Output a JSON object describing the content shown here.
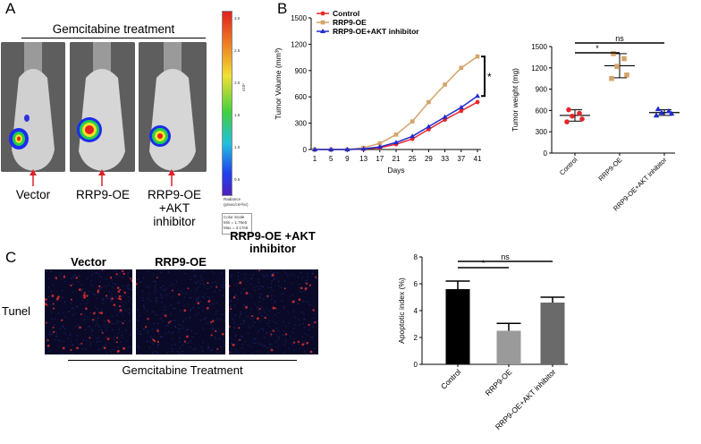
{
  "panelA": {
    "letter": "A",
    "treatment_label": "Gemcitabine treatment",
    "mice": [
      {
        "label": "Vector"
      },
      {
        "label": "RRP9-OE"
      },
      {
        "label": "RRP9-OE +AKT inhibitor"
      }
    ],
    "colorbar": {
      "ticks": [
        "3.0",
        "2.5",
        "2.0",
        "1.5",
        "1.0",
        "0.5"
      ],
      "unit": "x10⁶",
      "title_line1": "Radiance",
      "title_line2": "(p/sec/cm²/sr)",
      "scale_title": "Color Scale",
      "scale_min": "Min = 1.76e5",
      "scale_max": "Max = 3.17e6"
    }
  },
  "panelB": {
    "letter": "B"
  },
  "panelC": {
    "letter": "C",
    "row_label": "Tunel",
    "columns": [
      "Vector",
      "RRP9-OE",
      "RRP9-OE +AKT inhibitor"
    ],
    "treatment_label": "Gemcitabine Treatment"
  },
  "chart_data": [
    {
      "type": "line",
      "xlabel": "Days",
      "ylabel": "Tumor Volume (mm³)",
      "x": [
        1,
        5,
        9,
        13,
        17,
        21,
        25,
        29,
        33,
        37,
        41
      ],
      "ylim": [
        0,
        1500
      ],
      "yticks": [
        0,
        300,
        600,
        900,
        1200,
        1500
      ],
      "series": [
        {
          "name": "Control",
          "color": "#e8262a",
          "marker": "circle",
          "values": [
            0,
            0,
            0,
            5,
            20,
            60,
            120,
            230,
            340,
            440,
            540
          ]
        },
        {
          "name": "RRP9-OE",
          "color": "#d4a46a",
          "marker": "square",
          "values": [
            0,
            0,
            0,
            20,
            70,
            170,
            320,
            540,
            740,
            930,
            1060
          ]
        },
        {
          "name": "RRP9-OE+AKT inhibitor",
          "color": "#1f2bcc",
          "marker": "triangle",
          "values": [
            0,
            0,
            0,
            8,
            30,
            80,
            150,
            260,
            370,
            480,
            610
          ]
        }
      ],
      "annotation": "*",
      "legend": "top-left"
    },
    {
      "type": "scatter",
      "ylabel": "Tumor weight (mg)",
      "categories": [
        "Control",
        "RRP9-OE",
        "RRP9-OE+AKT inhibitor"
      ],
      "ylim": [
        0,
        1500
      ],
      "yticks": [
        0,
        300,
        600,
        900,
        1200,
        1500
      ],
      "means": [
        530,
        1230,
        570
      ],
      "errors": [
        80,
        170,
        40
      ],
      "points": [
        [
          610,
          560,
          520,
          480,
          440
        ],
        [
          1400,
          1330,
          1220,
          1100,
          1050
        ],
        [
          620,
          590,
          570,
          555,
          530
        ]
      ],
      "colors": [
        "#e8262a",
        "#d4a46a",
        "#1f2bcc"
      ],
      "comparisons": [
        {
          "label": "*",
          "from": 0,
          "to": 1
        },
        {
          "label": "ns",
          "from": 0,
          "to": 2
        }
      ]
    },
    {
      "type": "bar",
      "ylabel": "Apoptotic index (%)",
      "categories": [
        "Control",
        "RRP9-OE",
        "RRP9-OE+AKT inhibitor"
      ],
      "values": [
        5.6,
        2.5,
        4.6
      ],
      "errors": [
        0.6,
        0.55,
        0.4
      ],
      "ylim": [
        0,
        8
      ],
      "yticks": [
        0,
        2,
        4,
        6,
        8
      ],
      "colors": [
        "#000000",
        "#9a9a9a",
        "#6a6a6a"
      ],
      "comparisons": [
        {
          "label": "*",
          "from": 0,
          "to": 1
        },
        {
          "label": "ns",
          "from": 0,
          "to": 2
        }
      ]
    }
  ]
}
